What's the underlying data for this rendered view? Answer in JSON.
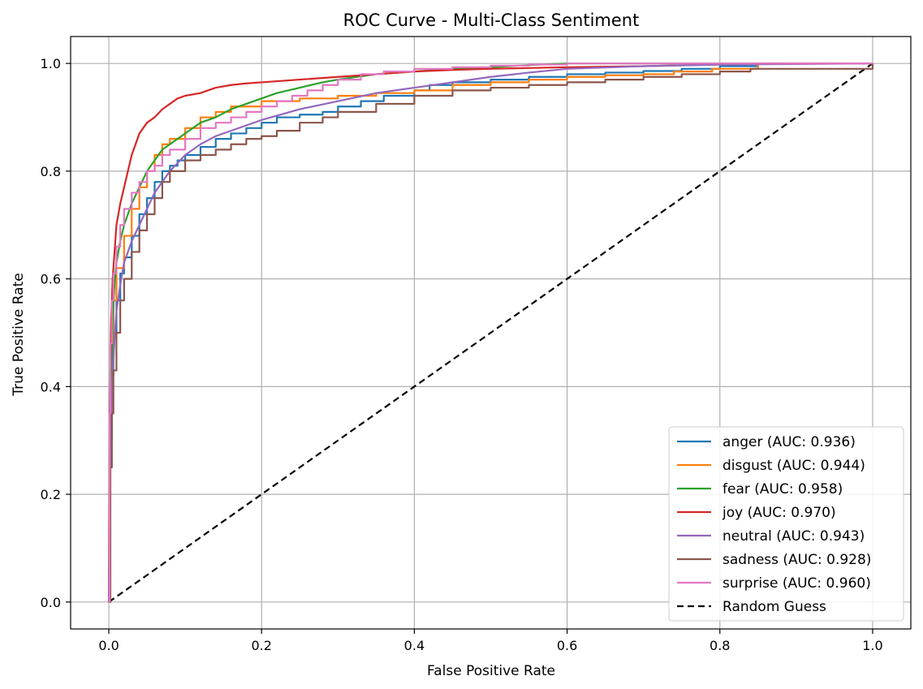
{
  "chart_data": {
    "type": "line",
    "title": "ROC Curve - Multi-Class Sentiment",
    "xlabel": "False Positive Rate",
    "ylabel": "True Positive Rate",
    "xlim": [
      -0.05,
      1.05
    ],
    "ylim": [
      -0.05,
      1.05
    ],
    "xticks": [
      0.0,
      0.2,
      0.4,
      0.6,
      0.8,
      1.0
    ],
    "yticks": [
      0.0,
      0.2,
      0.4,
      0.6,
      0.8,
      1.0
    ],
    "xtick_labels": [
      "0.0",
      "0.2",
      "0.4",
      "0.6",
      "0.8",
      "1.0"
    ],
    "ytick_labels": [
      "0.0",
      "0.2",
      "0.4",
      "0.6",
      "0.8",
      "1.0"
    ],
    "grid": true,
    "legend_position": "lower-right",
    "series": [
      {
        "name": "anger (AUC: 0.936)",
        "color": "#1f77b4",
        "step": true,
        "x": [
          0,
          0.002,
          0.004,
          0.006,
          0.01,
          0.015,
          0.02,
          0.03,
          0.04,
          0.05,
          0.06,
          0.07,
          0.08,
          0.09,
          0.1,
          0.12,
          0.14,
          0.16,
          0.18,
          0.2,
          0.22,
          0.25,
          0.28,
          0.3,
          0.33,
          0.36,
          0.4,
          0.42,
          0.45,
          0.5,
          0.55,
          0.6,
          0.65,
          0.7,
          0.75,
          0.8,
          0.85,
          1.0
        ],
        "y": [
          0,
          0.3,
          0.42,
          0.5,
          0.56,
          0.61,
          0.64,
          0.68,
          0.72,
          0.75,
          0.78,
          0.8,
          0.81,
          0.82,
          0.83,
          0.845,
          0.86,
          0.87,
          0.88,
          0.89,
          0.9,
          0.905,
          0.91,
          0.92,
          0.93,
          0.94,
          0.95,
          0.96,
          0.965,
          0.97,
          0.975,
          0.98,
          0.983,
          0.986,
          0.99,
          0.995,
          1.0,
          1.0
        ]
      },
      {
        "name": "disgust (AUC: 0.944)",
        "color": "#ff7f0e",
        "step": true,
        "x": [
          0,
          0.002,
          0.004,
          0.006,
          0.01,
          0.02,
          0.03,
          0.04,
          0.05,
          0.06,
          0.07,
          0.08,
          0.1,
          0.12,
          0.14,
          0.16,
          0.2,
          0.25,
          0.3,
          0.35,
          0.4,
          0.45,
          0.5,
          0.55,
          0.6,
          0.65,
          0.7,
          0.74,
          0.79,
          0.85,
          1.0
        ],
        "y": [
          0,
          0.35,
          0.48,
          0.56,
          0.62,
          0.68,
          0.73,
          0.77,
          0.8,
          0.83,
          0.85,
          0.86,
          0.88,
          0.9,
          0.91,
          0.92,
          0.93,
          0.935,
          0.94,
          0.945,
          0.95,
          0.96,
          0.965,
          0.97,
          0.975,
          0.978,
          0.98,
          0.985,
          0.99,
          1.0,
          1.0
        ]
      },
      {
        "name": "fear (AUC: 0.958)",
        "color": "#2ca02c",
        "x": [
          0,
          0.002,
          0.004,
          0.006,
          0.008,
          0.01,
          0.015,
          0.02,
          0.03,
          0.04,
          0.05,
          0.06,
          0.07,
          0.08,
          0.1,
          0.12,
          0.14,
          0.16,
          0.18,
          0.2,
          0.22,
          0.25,
          0.28,
          0.3,
          0.35,
          0.4,
          0.45,
          0.5,
          0.55,
          0.6,
          1.0
        ],
        "y": [
          0,
          0.3,
          0.45,
          0.55,
          0.6,
          0.63,
          0.67,
          0.7,
          0.74,
          0.77,
          0.8,
          0.82,
          0.84,
          0.85,
          0.87,
          0.89,
          0.9,
          0.915,
          0.925,
          0.935,
          0.945,
          0.955,
          0.965,
          0.97,
          0.98,
          0.985,
          0.99,
          0.993,
          0.997,
          1.0,
          1.0
        ]
      },
      {
        "name": "joy (AUC: 0.970)",
        "color": "#d62728",
        "x": [
          0,
          0.001,
          0.002,
          0.003,
          0.005,
          0.008,
          0.01,
          0.015,
          0.02,
          0.025,
          0.03,
          0.035,
          0.04,
          0.045,
          0.05,
          0.06,
          0.07,
          0.08,
          0.09,
          0.1,
          0.12,
          0.14,
          0.16,
          0.18,
          0.2,
          0.25,
          0.3,
          0.35,
          0.4,
          0.45,
          0.5,
          0.6,
          0.7,
          0.8,
          0.85,
          1.0
        ],
        "y": [
          0,
          0.3,
          0.42,
          0.52,
          0.6,
          0.66,
          0.7,
          0.74,
          0.77,
          0.8,
          0.83,
          0.85,
          0.87,
          0.88,
          0.89,
          0.9,
          0.915,
          0.925,
          0.935,
          0.94,
          0.945,
          0.955,
          0.96,
          0.963,
          0.965,
          0.97,
          0.975,
          0.98,
          0.985,
          0.988,
          0.99,
          0.993,
          0.995,
          0.998,
          1.0,
          1.0
        ]
      },
      {
        "name": "neutral (AUC: 0.943)",
        "color": "#9467bd",
        "x": [
          0,
          0.002,
          0.004,
          0.006,
          0.008,
          0.01,
          0.015,
          0.02,
          0.03,
          0.04,
          0.05,
          0.06,
          0.07,
          0.08,
          0.1,
          0.12,
          0.14,
          0.16,
          0.18,
          0.2,
          0.25,
          0.3,
          0.35,
          0.4,
          0.45,
          0.5,
          0.55,
          0.6,
          0.7,
          0.8,
          1.0
        ],
        "y": [
          0,
          0.25,
          0.38,
          0.45,
          0.5,
          0.54,
          0.59,
          0.63,
          0.67,
          0.7,
          0.73,
          0.76,
          0.78,
          0.8,
          0.83,
          0.85,
          0.865,
          0.875,
          0.885,
          0.895,
          0.915,
          0.93,
          0.945,
          0.955,
          0.965,
          0.975,
          0.983,
          0.99,
          0.995,
          0.998,
          1.0
        ]
      },
      {
        "name": "sadness (AUC: 0.928)",
        "color": "#8c564b",
        "step": true,
        "x": [
          0,
          0.002,
          0.004,
          0.006,
          0.01,
          0.015,
          0.02,
          0.03,
          0.04,
          0.05,
          0.06,
          0.07,
          0.08,
          0.1,
          0.12,
          0.14,
          0.16,
          0.18,
          0.2,
          0.22,
          0.25,
          0.28,
          0.3,
          0.35,
          0.4,
          0.45,
          0.5,
          0.55,
          0.6,
          0.65,
          0.7,
          0.75,
          0.8,
          0.84,
          1.0
        ],
        "y": [
          0,
          0.25,
          0.35,
          0.43,
          0.5,
          0.56,
          0.6,
          0.65,
          0.69,
          0.72,
          0.75,
          0.78,
          0.8,
          0.82,
          0.83,
          0.84,
          0.85,
          0.86,
          0.865,
          0.875,
          0.89,
          0.9,
          0.91,
          0.925,
          0.94,
          0.95,
          0.955,
          0.96,
          0.965,
          0.97,
          0.975,
          0.98,
          0.985,
          0.99,
          1.0
        ]
      },
      {
        "name": "surprise (AUC: 0.960)",
        "color": "#e377c2",
        "step": true,
        "x": [
          0,
          0.001,
          0.002,
          0.004,
          0.006,
          0.01,
          0.015,
          0.02,
          0.03,
          0.04,
          0.05,
          0.06,
          0.07,
          0.08,
          0.1,
          0.12,
          0.14,
          0.16,
          0.18,
          0.2,
          0.22,
          0.24,
          0.26,
          0.28,
          0.3,
          0.33,
          0.36,
          0.4,
          0.45,
          0.5,
          0.55,
          0.6,
          1.0
        ],
        "y": [
          0,
          0.35,
          0.48,
          0.56,
          0.61,
          0.66,
          0.7,
          0.73,
          0.76,
          0.78,
          0.8,
          0.81,
          0.83,
          0.84,
          0.86,
          0.88,
          0.89,
          0.9,
          0.91,
          0.92,
          0.93,
          0.94,
          0.95,
          0.96,
          0.97,
          0.98,
          0.985,
          0.99,
          0.993,
          0.996,
          0.998,
          1.0,
          1.0
        ]
      },
      {
        "name": "Random Guess",
        "color": "#000000",
        "dashed": true,
        "x": [
          0,
          1
        ],
        "y": [
          0,
          1
        ]
      }
    ]
  }
}
